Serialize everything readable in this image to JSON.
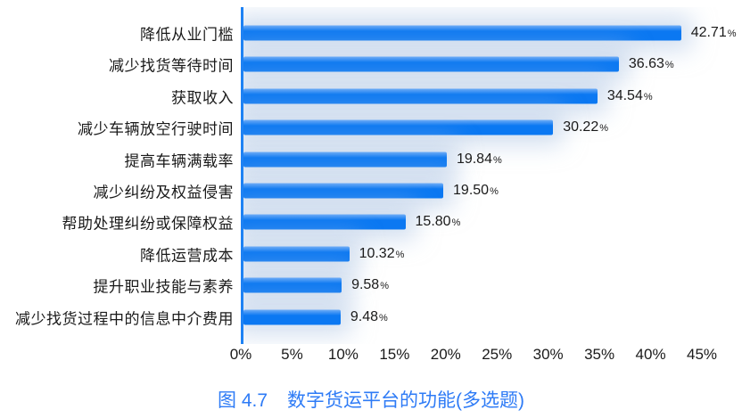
{
  "figure": {
    "caption_prefix": "图 4.7",
    "caption_title": "数字货运平台的功能(多选题)"
  },
  "colors": {
    "bar_main": "#0b78f2",
    "bar_highlight": "#6fadf7",
    "axis_line": "#1e82f4",
    "caption_text": "#2e7bf6",
    "label_text": "#1a1a1a",
    "bar_glow": "rgba(178,201,229,0.55)"
  },
  "chart_data": {
    "type": "bar",
    "orientation": "horizontal",
    "title": "图 4.7 数字货运平台的功能(多选题)",
    "xlabel": "",
    "ylabel": "",
    "categories": [
      "降低从业门槛",
      "减少找货等待时间",
      "获取收入",
      "减少车辆放空行驶时间",
      "提高车辆满载率",
      "减少纠纷及权益侵害",
      "帮助处理纠纷或保障权益",
      "降低运营成本",
      "提升职业技能与素养",
      "减少找货过程中的信息中介费用"
    ],
    "values": [
      42.71,
      36.63,
      34.54,
      30.22,
      19.84,
      19.5,
      15.8,
      10.32,
      9.58,
      9.48
    ],
    "value_suffix": "%",
    "value_decimals": 2,
    "x_tick_values": [
      0,
      5,
      10,
      15,
      20,
      25,
      30,
      35,
      40,
      45
    ],
    "x_tick_suffix": "%",
    "xlim": [
      0,
      45
    ],
    "grid": false,
    "legend": false,
    "data_labels": true
  }
}
